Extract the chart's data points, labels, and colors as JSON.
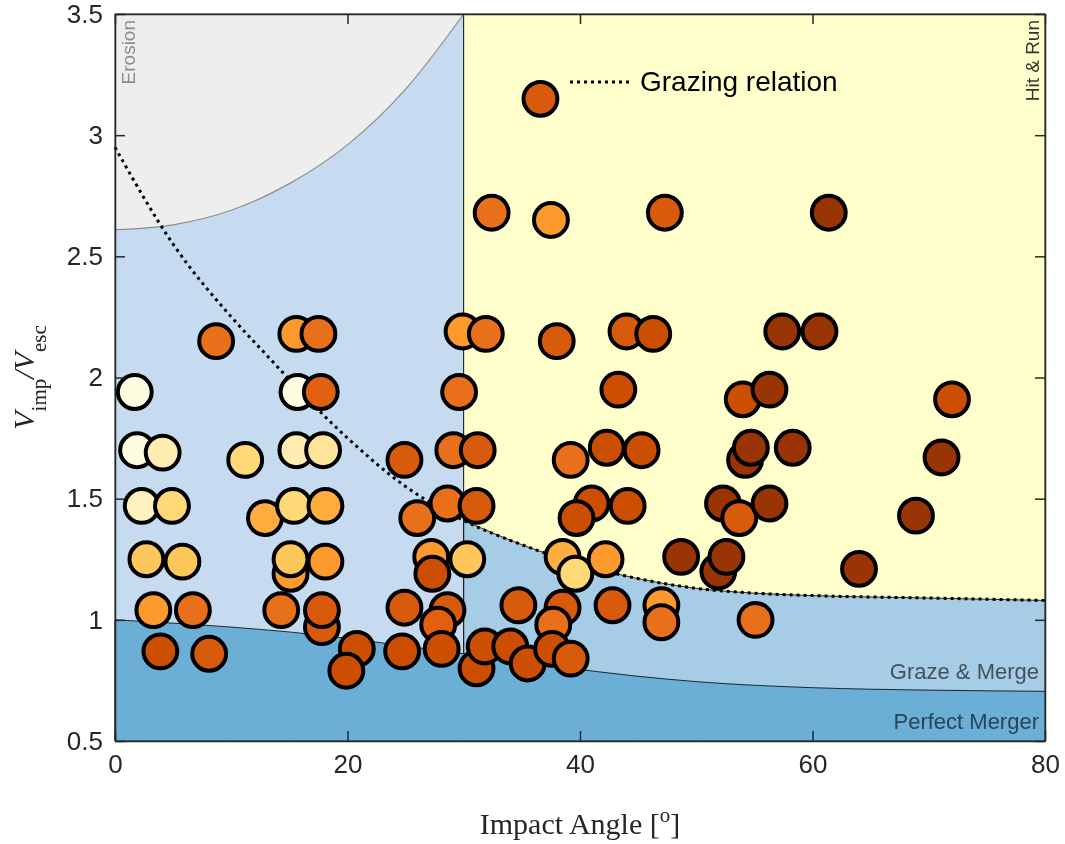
{
  "chart_data": {
    "type": "scatter",
    "xlabel": "Impact Angle [$^{o}$]",
    "ylabel": "V$_{imp}$/V$_{esc}$",
    "xlim": [
      0,
      80
    ],
    "ylim": [
      0.5,
      3.5
    ],
    "xticks": [
      0,
      20,
      40,
      60,
      80
    ],
    "yticks": [
      0.5,
      1,
      1.5,
      2,
      2.5,
      3,
      3.5
    ],
    "legend": "top",
    "bands": [
      {
        "axis": "x",
        "from": 0,
        "to": 30,
        "color": "#c6dbef"
      },
      {
        "axis": "x",
        "from": 30,
        "to": 80,
        "color": "#ffffcc",
        "label": "Hit & Run"
      }
    ],
    "series": [
      {
        "type": "line",
        "name": "Erosion",
        "color": "#8c8c8c",
        "x": [
          0,
          5,
          10,
          15,
          20,
          25,
          30
        ],
        "values": [
          2.61,
          2.63,
          2.69,
          2.8,
          2.96,
          3.19,
          3.5
        ],
        "lower": [
          2.61,
          2.63,
          2.69,
          2.8,
          2.96,
          3.19,
          3.5
        ],
        "upper": [
          3.5,
          3.5,
          3.5,
          3.5,
          3.5,
          3.5,
          3.5
        ]
      },
      {
        "type": "area",
        "name": "Graze & Merge",
        "color": "#a6cce6",
        "x": [
          30,
          35,
          45,
          50,
          55,
          60,
          70,
          80
        ],
        "values": [
          1.41,
          1.31,
          1.17,
          1.13,
          1.11,
          1.1,
          1.09,
          1.08
        ]
      },
      {
        "type": "area",
        "name": "Perfect Merger",
        "color": "#6baed6",
        "x": [
          0,
          10,
          15,
          30,
          45,
          50,
          60,
          70,
          80
        ],
        "values": [
          1.0,
          0.97,
          0.95,
          0.86,
          0.767,
          0.745,
          0.72,
          0.71,
          0.705
        ]
      },
      {
        "type": "line",
        "name": "Grazing relation",
        "color": "#000000",
        "line_style": "dotted",
        "x": [
          0,
          5,
          10,
          12.5,
          20,
          25,
          30,
          35,
          45,
          50,
          55,
          60,
          70,
          80
        ],
        "values": [
          2.95,
          2.55,
          2.25,
          2.12,
          1.75,
          1.55,
          1.41,
          1.31,
          1.17,
          1.13,
          1.11,
          1.1,
          1.09,
          1.08
        ]
      },
      {
        "marker": "circle",
        "x": [
          8.7,
          15.6,
          17.5,
          1.7,
          15.7,
          17.7,
          29.6,
          1.9,
          4.1,
          11.2,
          15.6,
          17.9,
          24.9,
          29.1,
          31.2,
          2.3,
          4.9,
          12.9,
          15.4,
          18.1,
          26.0,
          28.6,
          31.1,
          2.7,
          5.8,
          15.1,
          15.1,
          18.1,
          27.2,
          27.3,
          30.3,
          3.3,
          6.7,
          14.3,
          17.8,
          17.8,
          24.9,
          28.6,
          27.8,
          28.1,
          3.9,
          8.1,
          20.8,
          19.9,
          24.7,
          31.1,
          29.9,
          31.9,
          38.0,
          44.0,
          46.3,
          57.4,
          43.3,
          54.0,
          56.3,
          39.2,
          42.3,
          45.3,
          54.2,
          54.7,
          58.3,
          41.0,
          39.7,
          44.1,
          52.3,
          53.7,
          56.3,
          38.5,
          39.6,
          42.2,
          48.7,
          51.9,
          52.6,
          34.7,
          38.5,
          37.7,
          42.8,
          47.0,
          47.0,
          55.1,
          31.8,
          34.0,
          35.5,
          37.6,
          39.2,
          61.4,
          60.6,
          72.0,
          71.1,
          68.9,
          64.0,
          36.6,
          32.4,
          37.5,
          47.3
        ],
        "values": [
          2.15,
          2.18,
          2.18,
          1.94,
          1.94,
          1.94,
          1.94,
          1.7,
          1.69,
          1.66,
          1.7,
          1.7,
          1.66,
          1.7,
          1.7,
          1.47,
          1.47,
          1.42,
          1.47,
          1.47,
          1.42,
          1.48,
          1.47,
          1.25,
          1.24,
          1.19,
          1.25,
          1.24,
          1.26,
          1.19,
          1.25,
          1.04,
          1.04,
          1.04,
          0.97,
          1.04,
          1.05,
          1.04,
          0.98,
          0.88,
          0.87,
          0.86,
          0.88,
          0.79,
          0.87,
          0.8,
          2.19,
          2.18,
          2.15,
          2.19,
          2.18,
          2.19,
          1.95,
          1.91,
          1.95,
          1.66,
          1.71,
          1.7,
          1.66,
          1.71,
          1.71,
          1.48,
          1.42,
          1.47,
          1.48,
          1.42,
          1.48,
          1.26,
          1.19,
          1.25,
          1.26,
          1.2,
          1.26,
          1.06,
          1.05,
          0.98,
          1.06,
          1.06,
          0.99,
          1.0,
          0.89,
          0.89,
          0.82,
          0.88,
          0.84,
          2.68,
          2.19,
          1.91,
          1.67,
          1.43,
          1.21,
          3.15,
          2.68,
          2.65,
          2.68
        ],
        "colors": [
          "#e8701a",
          "#fd9a2e",
          "#e8701a",
          "#fffde0",
          "#fffde0",
          "#e06010",
          "#e8701a",
          "#fffde0",
          "#feecb0",
          "#fed976",
          "#feecb0",
          "#fee39a",
          "#d85a0c",
          "#e8701a",
          "#d85a0c",
          "#fff0c0",
          "#fed976",
          "#fdae3e",
          "#fed976",
          "#fdae3e",
          "#e8701a",
          "#e8701a",
          "#d85a0c",
          "#fdc65a",
          "#fdc65a",
          "#fd9a2e",
          "#fdc65a",
          "#fd9a2e",
          "#fd9a2e",
          "#cc4e02",
          "#fdc65a",
          "#fd9a2e",
          "#e8701a",
          "#e8701a",
          "#d85a0c",
          "#d85a0c",
          "#d85a0c",
          "#d85a0c",
          "#e06010",
          "#cc4e02",
          "#cc4e02",
          "#d85a0c",
          "#cc4e02",
          "#cc4e02",
          "#cc4e02",
          "#cc4e02",
          "#fd9a2e",
          "#e8701a",
          "#d85a0c",
          "#d85a0c",
          "#cc4e02",
          "#993404",
          "#cc4e02",
          "#cc4e02",
          "#993404",
          "#e8701a",
          "#cc4e02",
          "#cc4e02",
          "#993404",
          "#993404",
          "#993404",
          "#cc4e02",
          "#cc4e02",
          "#cc4e02",
          "#993404",
          "#d85a0c",
          "#993404",
          "#fdae3e",
          "#fed976",
          "#fd9a2e",
          "#993404",
          "#993404",
          "#993404",
          "#d85a0c",
          "#d85a0c",
          "#e8701a",
          "#d85a0c",
          "#fd9a2e",
          "#e8701a",
          "#e8701a",
          "#cc4e02",
          "#cc4e02",
          "#cc4e02",
          "#cc4e02",
          "#d85a0c",
          "#993404",
          "#993404",
          "#cc4e02",
          "#993404",
          "#993404",
          "#993404",
          "#d85a0c",
          "#e8701a",
          "#fd9a2e",
          "#d85a0c"
        ]
      }
    ]
  }
}
